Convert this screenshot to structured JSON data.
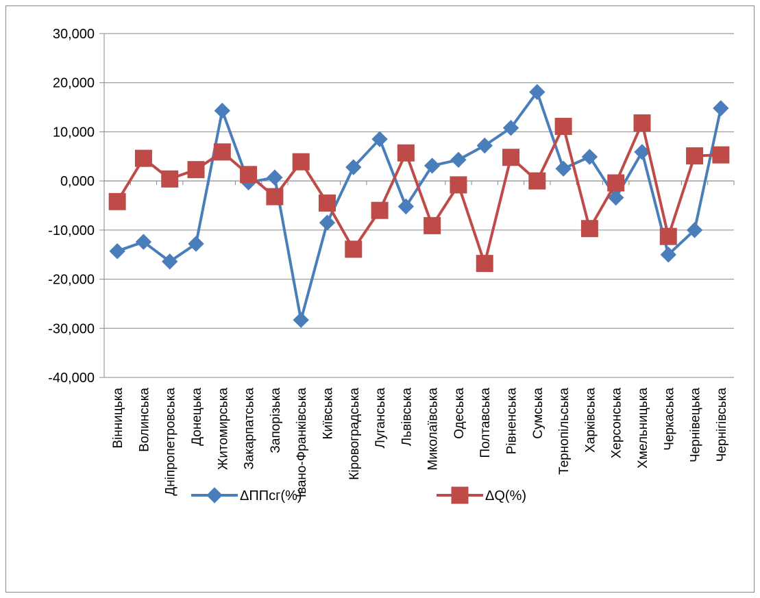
{
  "chart_data": {
    "type": "line",
    "categories": [
      "Вінницька",
      "Волинська",
      "Дніпропетровська",
      "Донецька",
      "Житомирська",
      "Закарпатська",
      "Запорізька",
      "Івано-Франківська",
      "Київська",
      "Кіровоградська",
      "Луганська",
      "Львівська",
      "Миколаївська",
      "Одеська",
      "Полтавська",
      "Рівненська",
      "Сумська",
      "Тернопільська",
      "Харківська",
      "Херсонська",
      "Хмельницька",
      "Черкаська",
      "Чернівецька",
      "Чернігівська"
    ],
    "y_tick_labels": [
      "30,000",
      "20,000",
      "10,000",
      "0,000",
      "-10,000",
      "-20,000",
      "-30,000",
      "-40,000"
    ],
    "ylim": [
      -40,
      30
    ],
    "ytick_step": 10,
    "grid": "horizontal",
    "legend_position": "bottom",
    "series": [
      {
        "name": "ΔППсг(%)",
        "color": "#4a7ebb",
        "marker": "diamond",
        "values": [
          -14.3,
          -12.4,
          -16.4,
          -12.8,
          14.3,
          -0.3,
          0.7,
          -28.3,
          -8.5,
          2.8,
          8.5,
          -5.2,
          3.1,
          4.3,
          7.2,
          10.8,
          18.1,
          2.5,
          4.9,
          -3.4,
          5.9,
          -15.0,
          -10.0,
          14.8
        ]
      },
      {
        "name": "ΔQ(%)",
        "color": "#be4b48",
        "marker": "square",
        "values": [
          -4.2,
          4.6,
          0.4,
          2.3,
          5.9,
          1.3,
          -3.2,
          3.9,
          -4.5,
          -13.9,
          -6.0,
          5.7,
          -9.1,
          -0.8,
          -16.8,
          4.8,
          0.0,
          11.1,
          -9.7,
          -0.4,
          11.8,
          -11.3,
          5.1,
          5.3
        ]
      }
    ]
  }
}
